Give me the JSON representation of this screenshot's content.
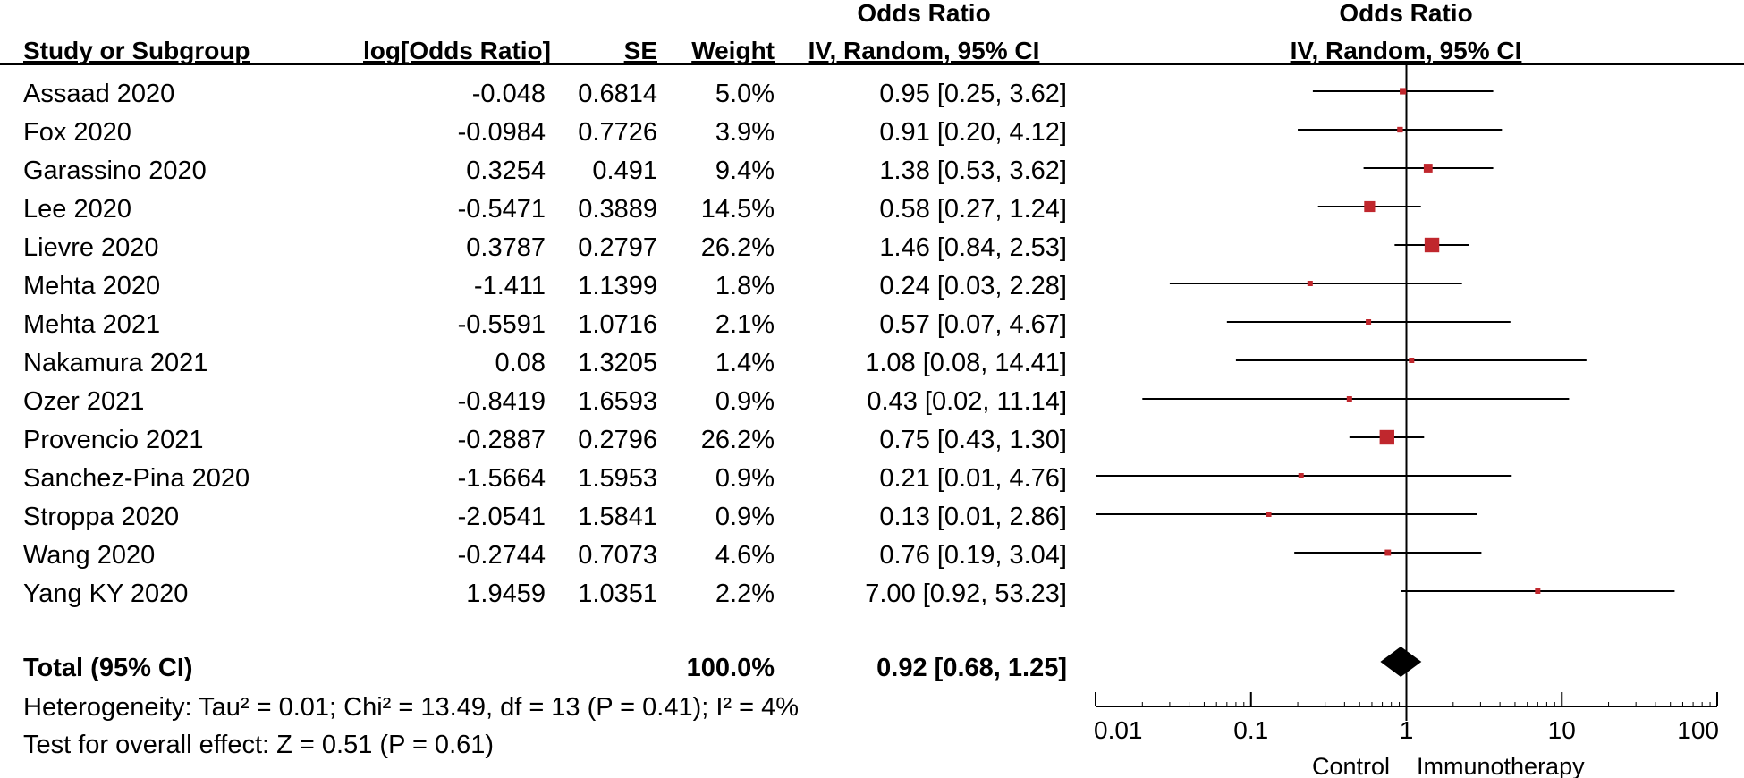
{
  "headers": {
    "study": "Study or Subgroup",
    "log_or": "log[Odds Ratio]",
    "se": "SE",
    "weight": "Weight",
    "or_top": "Odds Ratio",
    "or_bottom": "IV, Random, 95% CI",
    "plot_top": "Odds Ratio",
    "plot_bottom": "IV, Random, 95% CI"
  },
  "rows": [
    {
      "study": "Assaad 2020",
      "log_or": "-0.048",
      "se": "0.6814",
      "weight": "5.0%",
      "ci": "0.95 [0.25, 3.62]"
    },
    {
      "study": "Fox 2020",
      "log_or": "-0.0984",
      "se": "0.7726",
      "weight": "3.9%",
      "ci": "0.91 [0.20, 4.12]"
    },
    {
      "study": "Garassino 2020",
      "log_or": "0.3254",
      "se": "0.491",
      "weight": "9.4%",
      "ci": "1.38 [0.53, 3.62]"
    },
    {
      "study": "Lee 2020",
      "log_or": "-0.5471",
      "se": "0.3889",
      "weight": "14.5%",
      "ci": "0.58 [0.27, 1.24]"
    },
    {
      "study": "Lievre 2020",
      "log_or": "0.3787",
      "se": "0.2797",
      "weight": "26.2%",
      "ci": "1.46 [0.84, 2.53]"
    },
    {
      "study": "Mehta 2020",
      "log_or": "-1.411",
      "se": "1.1399",
      "weight": "1.8%",
      "ci": "0.24 [0.03, 2.28]"
    },
    {
      "study": "Mehta 2021",
      "log_or": "-0.5591",
      "se": "1.0716",
      "weight": "2.1%",
      "ci": "0.57 [0.07, 4.67]"
    },
    {
      "study": "Nakamura 2021",
      "log_or": "0.08",
      "se": "1.3205",
      "weight": "1.4%",
      "ci": "1.08 [0.08, 14.41]"
    },
    {
      "study": "Ozer 2021",
      "log_or": "-0.8419",
      "se": "1.6593",
      "weight": "0.9%",
      "ci": "0.43 [0.02, 11.14]"
    },
    {
      "study": "Provencio 2021",
      "log_or": "-0.2887",
      "se": "0.2796",
      "weight": "26.2%",
      "ci": "0.75 [0.43, 1.30]"
    },
    {
      "study": "Sanchez-Pina 2020",
      "log_or": "-1.5664",
      "se": "1.5953",
      "weight": "0.9%",
      "ci": "0.21 [0.01, 4.76]"
    },
    {
      "study": "Stroppa 2020",
      "log_or": "-2.0541",
      "se": "1.5841",
      "weight": "0.9%",
      "ci": "0.13 [0.01, 2.86]"
    },
    {
      "study": "Wang 2020",
      "log_or": "-0.2744",
      "se": "0.7073",
      "weight": "4.6%",
      "ci": "0.76 [0.19, 3.04]"
    },
    {
      "study": "Yang KY 2020",
      "log_or": "1.9459",
      "se": "1.0351",
      "weight": "2.2%",
      "ci": "7.00 [0.92, 53.23]"
    }
  ],
  "total": {
    "label": "Total (95% CI)",
    "weight": "100.0%",
    "ci": "0.92 [0.68, 1.25]"
  },
  "heterogeneity": "Heterogeneity: Tau² = 0.01; Chi² = 13.49, df = 13 (P = 0.41); I² = 4%",
  "overall_effect": "Test for overall effect: Z = 0.51 (P = 0.61)",
  "favours": {
    "left": "Control",
    "right": "Immunotherapy"
  },
  "colors": {
    "square": "#c0272d",
    "diamond": "#000000",
    "line": "#000000",
    "text": "#222222"
  },
  "chart_data": {
    "type": "forest",
    "x_scale": "log",
    "xlim": [
      0.01,
      100
    ],
    "x_ticks": [
      0.01,
      0.1,
      1,
      10,
      100
    ],
    "x_tick_labels": [
      "0.01",
      "0.1",
      "1",
      "10",
      "100"
    ],
    "reference_line": 1,
    "studies": [
      {
        "name": "Assaad 2020",
        "or": 0.95,
        "lower": 0.25,
        "upper": 3.62,
        "weight": 5.0
      },
      {
        "name": "Fox 2020",
        "or": 0.91,
        "lower": 0.2,
        "upper": 4.12,
        "weight": 3.9
      },
      {
        "name": "Garassino 2020",
        "or": 1.38,
        "lower": 0.53,
        "upper": 3.62,
        "weight": 9.4
      },
      {
        "name": "Lee 2020",
        "or": 0.58,
        "lower": 0.27,
        "upper": 1.24,
        "weight": 14.5
      },
      {
        "name": "Lievre 2020",
        "or": 1.46,
        "lower": 0.84,
        "upper": 2.53,
        "weight": 26.2
      },
      {
        "name": "Mehta 2020",
        "or": 0.24,
        "lower": 0.03,
        "upper": 2.28,
        "weight": 1.8
      },
      {
        "name": "Mehta 2021",
        "or": 0.57,
        "lower": 0.07,
        "upper": 4.67,
        "weight": 2.1
      },
      {
        "name": "Nakamura 2021",
        "or": 1.08,
        "lower": 0.08,
        "upper": 14.41,
        "weight": 1.4
      },
      {
        "name": "Ozer 2021",
        "or": 0.43,
        "lower": 0.02,
        "upper": 11.14,
        "weight": 0.9
      },
      {
        "name": "Provencio 2021",
        "or": 0.75,
        "lower": 0.43,
        "upper": 1.3,
        "weight": 26.2
      },
      {
        "name": "Sanchez-Pina 2020",
        "or": 0.21,
        "lower": 0.01,
        "upper": 4.76,
        "weight": 0.9
      },
      {
        "name": "Stroppa 2020",
        "or": 0.13,
        "lower": 0.01,
        "upper": 2.86,
        "weight": 0.9
      },
      {
        "name": "Wang 2020",
        "or": 0.76,
        "lower": 0.19,
        "upper": 3.04,
        "weight": 4.6
      },
      {
        "name": "Yang KY 2020",
        "or": 7.0,
        "lower": 0.92,
        "upper": 53.23,
        "weight": 2.2
      }
    ],
    "pooled": {
      "or": 0.92,
      "lower": 0.68,
      "upper": 1.25
    }
  }
}
